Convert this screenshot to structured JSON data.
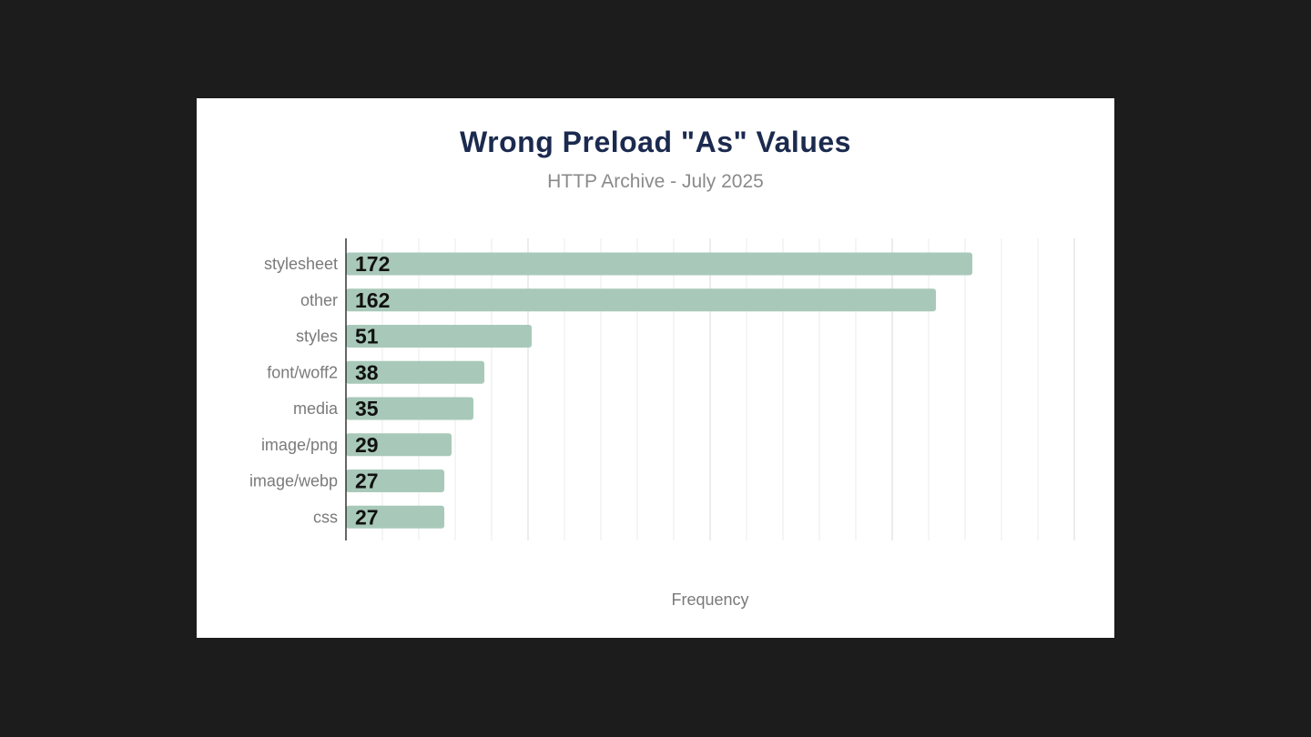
{
  "chart_data": {
    "type": "bar",
    "orientation": "horizontal",
    "title": "Wrong Preload \"As\" Values",
    "subtitle": "HTTP Archive - July 2025",
    "xlabel": "Frequency",
    "ylabel": "",
    "categories": [
      "stylesheet",
      "other",
      "styles",
      "font/woff2",
      "media",
      "image/png",
      "image/webp",
      "css"
    ],
    "values": [
      172,
      162,
      51,
      38,
      35,
      29,
      27,
      27
    ],
    "xlim": [
      0,
      200
    ],
    "grid": true,
    "legend": "none",
    "bar_color": "#a8c9b9",
    "data_labels": true
  }
}
